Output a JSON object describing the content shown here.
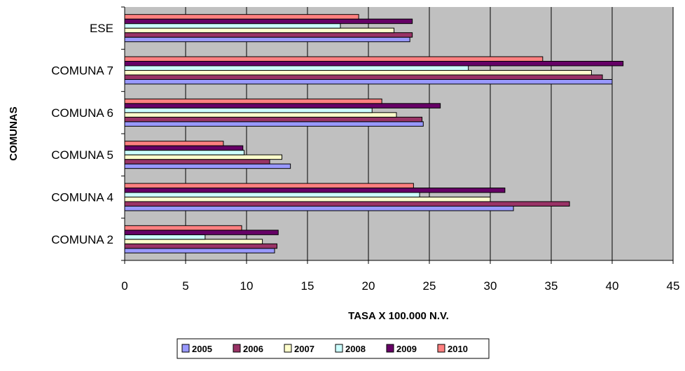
{
  "chart_data": {
    "type": "bar",
    "orientation": "horizontal",
    "categories": [
      "COMUNA 2",
      "COMUNA 4",
      "COMUNA 5",
      "COMUNA 6",
      "COMUNA 7",
      "ESE"
    ],
    "series": [
      {
        "name": "2005",
        "color": "#9999ff",
        "values": [
          12.3,
          31.9,
          13.6,
          24.5,
          40.0,
          23.4
        ]
      },
      {
        "name": "2006",
        "color": "#993366",
        "values": [
          12.5,
          36.5,
          11.9,
          24.4,
          39.2,
          23.6
        ]
      },
      {
        "name": "2007",
        "color": "#ffffcc",
        "values": [
          11.3,
          30.0,
          12.9,
          22.3,
          38.3,
          22.1
        ]
      },
      {
        "name": "2008",
        "color": "#ccffff",
        "values": [
          6.6,
          24.2,
          9.8,
          20.3,
          28.2,
          17.7
        ]
      },
      {
        "name": "2009",
        "color": "#660066",
        "values": [
          12.6,
          31.2,
          9.7,
          25.9,
          40.9,
          23.6
        ]
      },
      {
        "name": "2010",
        "color": "#ff8080",
        "values": [
          9.6,
          23.7,
          8.1,
          21.1,
          34.3,
          19.2
        ]
      }
    ],
    "xlabel": "TASA X 100.000 N.V.",
    "ylabel": "COMUNAS",
    "xlim": [
      0,
      45
    ],
    "xticks": [
      "0",
      "5",
      "10",
      "15",
      "20",
      "25",
      "30",
      "35",
      "40",
      "45"
    ],
    "grid": "vertical",
    "plot_background": "#c0c0c0",
    "legend_position": "bottom"
  }
}
